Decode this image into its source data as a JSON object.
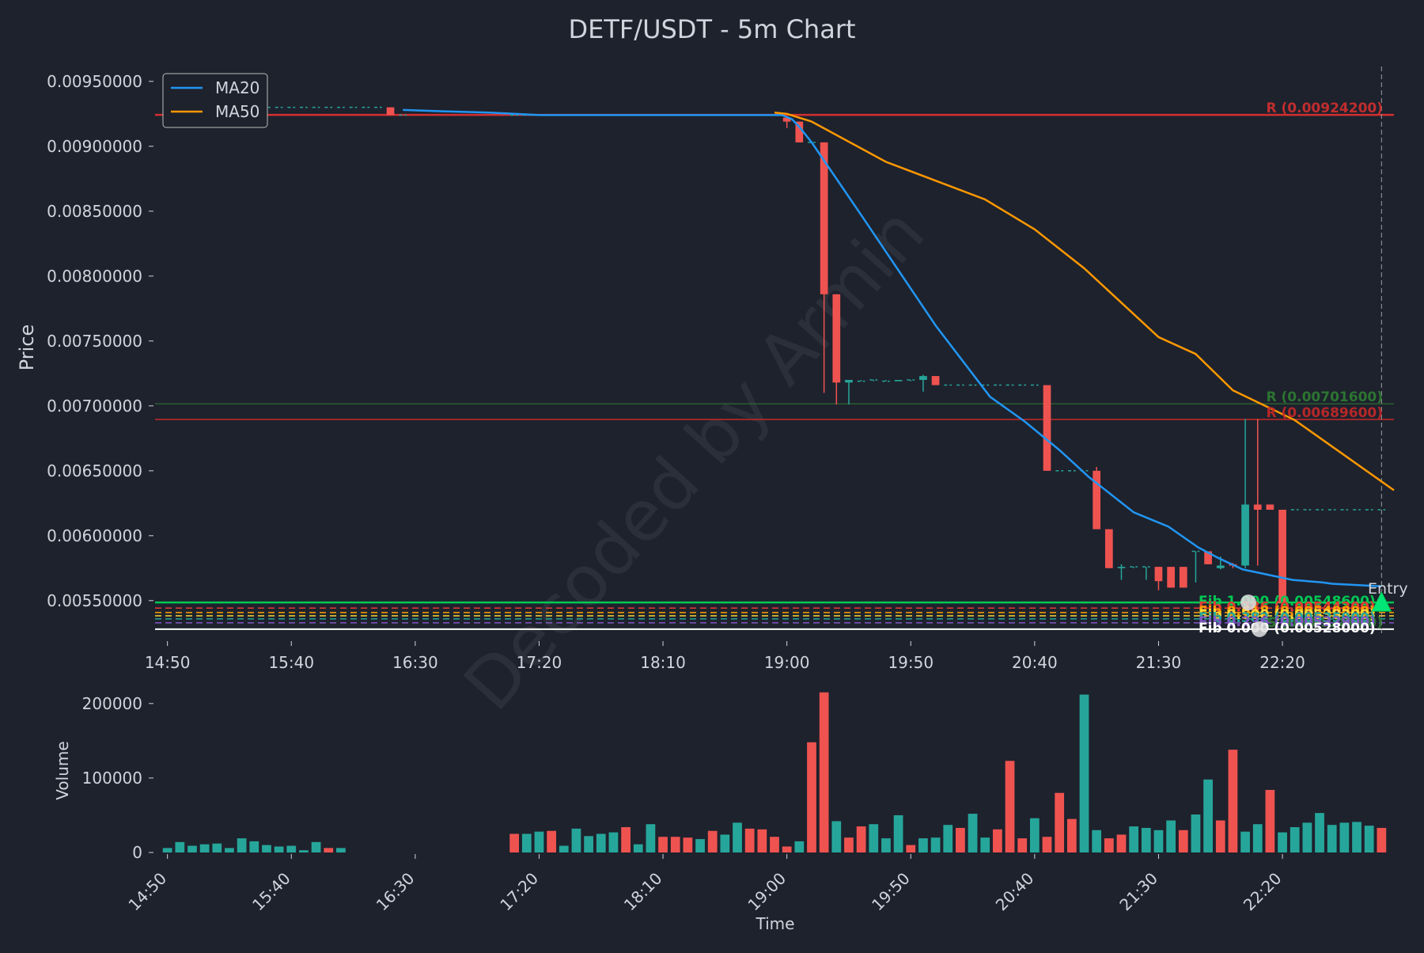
{
  "chart_data": {
    "type": "candlestick",
    "title": "DETF/USDT - 5m Chart",
    "watermark": "Decoded by Armin",
    "price_panel": {
      "ylabel": "Price",
      "ylim": [
        0.0052,
        0.0097
      ],
      "yticks": [
        "0.00550000",
        "0.00600000",
        "0.00650000",
        "0.00700000",
        "0.00750000",
        "0.00800000",
        "0.00850000",
        "0.00900000",
        "0.00950000"
      ],
      "ytick_values": [
        0.0055,
        0.006,
        0.0065,
        0.007,
        0.0075,
        0.008,
        0.0085,
        0.009,
        0.0095
      ],
      "xticks": [
        "14:50",
        "15:40",
        "16:30",
        "17:20",
        "18:10",
        "19:00",
        "19:50",
        "20:40",
        "21:30",
        "22:20"
      ],
      "xtick_minutes": [
        890,
        940,
        990,
        1040,
        1090,
        1140,
        1190,
        1240,
        1290,
        1340
      ],
      "xlim_minutes": [
        885,
        1385
      ],
      "candle_minutes": [
        890,
        895,
        900,
        905,
        910,
        915,
        920,
        925,
        930,
        935,
        940,
        945,
        950,
        955,
        960,
        965,
        970,
        975,
        980,
        985,
        1030,
        1035,
        1040,
        1045,
        1050,
        1055,
        1060,
        1065,
        1070,
        1075,
        1080,
        1085,
        1090,
        1095,
        1100,
        1105,
        1110,
        1115,
        1120,
        1125,
        1130,
        1135,
        1140,
        1145,
        1150,
        1155,
        1160,
        1165,
        1170,
        1175,
        1180,
        1185,
        1190,
        1195,
        1200,
        1205,
        1210,
        1215,
        1220,
        1225,
        1230,
        1235,
        1240,
        1245,
        1250,
        1255,
        1260,
        1265,
        1270,
        1275,
        1280,
        1285,
        1290,
        1295,
        1300,
        1305,
        1310,
        1315,
        1320,
        1325,
        1330,
        1335,
        1340,
        1345,
        1350,
        1355,
        1360,
        1365,
        1370,
        1375,
        1380
      ],
      "open": [
        0.0093,
        0.0093,
        0.0093,
        0.0093,
        0.0093,
        0.0093,
        0.0093,
        0.0093,
        0.0093,
        0.0093,
        0.0093,
        0.0093,
        0.0093,
        0.0093,
        0.0093,
        0.0093,
        0.0093,
        0.0093,
        0.0093,
        0.00924,
        0.00924,
        0.00924,
        0.00924,
        0.00924,
        0.00924,
        0.00924,
        0.00924,
        0.00924,
        0.00924,
        0.00924,
        0.00924,
        0.00924,
        0.00924,
        0.00924,
        0.00924,
        0.00924,
        0.00924,
        0.00924,
        0.00924,
        0.00924,
        0.00924,
        0.00924,
        0.00922,
        0.00919,
        0.00903,
        0.00903,
        0.00786,
        0.00718,
        0.00719,
        0.0072,
        0.00719,
        0.00719,
        0.0072,
        0.0072,
        0.00723,
        0.00716,
        0.00716,
        0.00716,
        0.00716,
        0.00716,
        0.00716,
        0.00716,
        0.00716,
        0.00716,
        0.0065,
        0.0065,
        0.0065,
        0.0065,
        0.00605,
        0.00575,
        0.00576,
        0.00576,
        0.00576,
        0.00576,
        0.00576,
        0.00588,
        0.00588,
        0.00575,
        0.00578,
        0.00577,
        0.00624,
        0.00624,
        0.0062,
        0.0062,
        0.0062,
        0.0062,
        0.0062,
        0.0062,
        0.0062,
        0.0062,
        0.0062,
        0.0062,
        0.0062
      ],
      "high": [
        0.0093,
        0.0093,
        0.0093,
        0.0093,
        0.0093,
        0.0093,
        0.0093,
        0.0093,
        0.0093,
        0.0093,
        0.0093,
        0.0093,
        0.0093,
        0.0093,
        0.0093,
        0.0093,
        0.0093,
        0.0093,
        0.0093,
        0.00924,
        0.00924,
        0.00924,
        0.00924,
        0.00924,
        0.00924,
        0.00924,
        0.00924,
        0.00924,
        0.00924,
        0.00924,
        0.00924,
        0.00924,
        0.00924,
        0.00924,
        0.00924,
        0.00924,
        0.00924,
        0.00924,
        0.00924,
        0.00924,
        0.00924,
        0.00924,
        0.00922,
        0.00919,
        0.00903,
        0.00903,
        0.00786,
        0.0072,
        0.0072,
        0.0072,
        0.0072,
        0.0072,
        0.0072,
        0.00724,
        0.00723,
        0.00716,
        0.00716,
        0.00716,
        0.00716,
        0.00716,
        0.00716,
        0.00716,
        0.00716,
        0.00716,
        0.0065,
        0.0065,
        0.0065,
        0.00653,
        0.00605,
        0.00578,
        0.00576,
        0.00576,
        0.00576,
        0.00576,
        0.00576,
        0.00588,
        0.00588,
        0.00584,
        0.00579,
        0.0069,
        0.0069,
        0.00624,
        0.0062,
        0.0062,
        0.0062,
        0.0062,
        0.0062,
        0.0062,
        0.0062,
        0.0062,
        0.0062,
        0.0062,
        0.0062
      ],
      "low": [
        0.0093,
        0.0093,
        0.0093,
        0.0093,
        0.0093,
        0.0093,
        0.0093,
        0.0093,
        0.0093,
        0.0093,
        0.0093,
        0.0093,
        0.0093,
        0.0093,
        0.0093,
        0.0093,
        0.0093,
        0.0093,
        0.00924,
        0.00924,
        0.00924,
        0.00924,
        0.00924,
        0.00924,
        0.00924,
        0.00924,
        0.00924,
        0.00924,
        0.00924,
        0.00924,
        0.00924,
        0.00924,
        0.00924,
        0.00924,
        0.00924,
        0.00924,
        0.00924,
        0.00924,
        0.00924,
        0.00924,
        0.00924,
        0.00924,
        0.00914,
        0.00903,
        0.00903,
        0.0071,
        0.00701,
        0.00701,
        0.00719,
        0.00719,
        0.00719,
        0.00719,
        0.00719,
        0.00711,
        0.00716,
        0.00716,
        0.00716,
        0.00716,
        0.00716,
        0.00716,
        0.00716,
        0.00716,
        0.00716,
        0.0065,
        0.0065,
        0.0065,
        0.0065,
        0.00605,
        0.00575,
        0.00566,
        0.00575,
        0.00566,
        0.00558,
        0.0056,
        0.0056,
        0.00564,
        0.00578,
        0.00574,
        0.00575,
        0.00575,
        0.00577,
        0.0062,
        0.00548,
        0.0062,
        0.0062,
        0.0062,
        0.0062,
        0.0062,
        0.0062,
        0.0062,
        0.0062,
        0.0062,
        0.0062
      ],
      "close": [
        0.0093,
        0.0093,
        0.0093,
        0.0093,
        0.0093,
        0.0093,
        0.0093,
        0.0093,
        0.0093,
        0.0093,
        0.0093,
        0.0093,
        0.0093,
        0.0093,
        0.0093,
        0.0093,
        0.0093,
        0.0093,
        0.00924,
        0.00924,
        0.00924,
        0.00924,
        0.00924,
        0.00924,
        0.00924,
        0.00924,
        0.00924,
        0.00924,
        0.00924,
        0.00924,
        0.00924,
        0.00924,
        0.00924,
        0.00924,
        0.00924,
        0.00924,
        0.00924,
        0.00924,
        0.00924,
        0.00924,
        0.00924,
        0.00924,
        0.00919,
        0.00903,
        0.00903,
        0.00786,
        0.00718,
        0.0072,
        0.00719,
        0.0072,
        0.00719,
        0.0072,
        0.0072,
        0.00723,
        0.00716,
        0.00716,
        0.00716,
        0.00716,
        0.00716,
        0.00716,
        0.00716,
        0.00716,
        0.00716,
        0.0065,
        0.0065,
        0.0065,
        0.0065,
        0.00605,
        0.00575,
        0.00576,
        0.00576,
        0.00576,
        0.00565,
        0.0056,
        0.0056,
        0.00588,
        0.00578,
        0.00577,
        0.00577,
        0.00624,
        0.0062,
        0.0062,
        0.00548,
        0.0062,
        0.0062,
        0.0062,
        0.0062,
        0.0062,
        0.0062,
        0.0062,
        0.0062,
        0.0062,
        0.0062
      ],
      "ma20": {
        "name": "MA20",
        "color": "#2196f3",
        "minutes": [
          985,
          1000,
          1020,
          1040,
          1060,
          1080,
          1100,
          1120,
          1130,
          1138,
          1142,
          1145,
          1150,
          1170,
          1200,
          1222,
          1236,
          1250,
          1262,
          1280,
          1294,
          1306,
          1314,
          1324,
          1344,
          1356,
          1360,
          1380
        ],
        "values": [
          0.00928,
          0.00927,
          0.00926,
          0.00924,
          0.00924,
          0.00924,
          0.00924,
          0.00924,
          0.00924,
          0.00924,
          0.00921,
          0.00915,
          0.00903,
          0.00847,
          0.00762,
          0.00707,
          0.00688,
          0.00666,
          0.00645,
          0.00618,
          0.00607,
          0.00591,
          0.00583,
          0.00574,
          0.00566,
          0.00564,
          0.00563,
          0.00561
        ]
      },
      "ma50": {
        "name": "MA50",
        "color": "#ff9800",
        "minutes": [
          1135,
          1140,
          1150,
          1180,
          1220,
          1240,
          1260,
          1290,
          1305,
          1320,
          1345,
          1385
        ],
        "values": [
          0.00926,
          0.00925,
          0.00919,
          0.00888,
          0.00859,
          0.00836,
          0.00806,
          0.00753,
          0.0074,
          0.00712,
          0.00689,
          0.00635
        ]
      },
      "levels": [
        {
          "label": "R (0.00924200)",
          "value": 0.009242,
          "color": "#d32f2f",
          "style": "solid",
          "width": 2.5
        },
        {
          "label": "R (0.00701600)",
          "value": 0.007016,
          "color": "#2e7d32",
          "style": "solid",
          "width": 1
        },
        {
          "label": "R (0.00689600)",
          "value": 0.006896,
          "color": "#c62828",
          "style": "solid",
          "width": 1.5
        },
        {
          "label": "S (0.00528000)",
          "value": 0.00528,
          "color": "#2e7d32",
          "style": "solid",
          "width": 1
        },
        {
          "label": "Fib 1.000 (0.00548600)",
          "value": 0.005486,
          "color": "#00c853",
          "style": "solid",
          "width": 2.5
        },
        {
          "label": "Fib 0.786 (0.00544200)",
          "value": 0.005442,
          "color": "#e53935",
          "style": "dashed",
          "width": 1.5
        },
        {
          "label": "Fib 0.618 (0.00540800)",
          "value": 0.005408,
          "color": "#ffa000",
          "style": "dashed",
          "width": 1.5
        },
        {
          "label": "Fib 0.500 (0.00538300)",
          "value": 0.005383,
          "color": "#fdd835",
          "style": "dashed",
          "width": 1.5
        },
        {
          "label": "Fib 0.382 (0.00535900)",
          "value": 0.005359,
          "color": "#26a69a",
          "style": "dashed",
          "width": 1.5
        },
        {
          "label": "Fib 0.236 (0.00532900)",
          "value": 0.005329,
          "color": "#7e57c2",
          "style": "dashed",
          "width": 1.5
        },
        {
          "label": "Fib 0.000 (0.00528000)",
          "value": 0.00528,
          "color": "#ffffff",
          "style": "solid",
          "width": 2
        }
      ],
      "entry": {
        "label": "Entry",
        "minute": 1380,
        "value": 0.00548
      }
    },
    "volume_panel": {
      "ylabel": "Volume",
      "xlabel": "Time",
      "ylim": [
        0,
        220000
      ],
      "yticks": [
        "0",
        "100000",
        "200000"
      ],
      "ytick_values": [
        0,
        100000,
        200000
      ],
      "volumes": [
        6000,
        14000,
        9000,
        11000,
        12000,
        6000,
        19000,
        15000,
        10000,
        8000,
        9000,
        3000,
        14000,
        6000,
        6000,
        0,
        0,
        0,
        0,
        0,
        25000,
        25000,
        28000,
        29000,
        9000,
        32000,
        22000,
        25000,
        27000,
        34000,
        11000,
        38000,
        21000,
        21000,
        20000,
        18000,
        29000,
        24000,
        40000,
        32000,
        31000,
        21000,
        8000,
        15000,
        148000,
        215000,
        42000,
        20000,
        35000,
        38000,
        19000,
        50000,
        10000,
        19000,
        20000,
        37000,
        33000,
        52000,
        20000,
        31000,
        123000,
        19000,
        46000,
        21000,
        80000,
        45000,
        212000,
        30000,
        19000,
        24000,
        35000,
        33000,
        30000,
        43000,
        30000,
        51000,
        98000,
        43000,
        138000,
        28000,
        38000,
        84000,
        27000,
        34000,
        40000,
        53000,
        37000,
        40000,
        41000,
        36000,
        33000,
        2000,
        2000
      ],
      "up": [
        true,
        true,
        true,
        true,
        true,
        true,
        true,
        true,
        true,
        true,
        true,
        true,
        true,
        false,
        true,
        true,
        true,
        true,
        true,
        false,
        false,
        true,
        true,
        false,
        true,
        true,
        true,
        true,
        true,
        false,
        true,
        true,
        false,
        false,
        false,
        true,
        false,
        true,
        true,
        false,
        false,
        false,
        false,
        true,
        false,
        false,
        true,
        false,
        false,
        true,
        true,
        true,
        false,
        true,
        true,
        true,
        false,
        true,
        true,
        false,
        false,
        false,
        true,
        false,
        false,
        false,
        true,
        true,
        false,
        false,
        true,
        true,
        true,
        true,
        false,
        true,
        true,
        false,
        false,
        true,
        true,
        false,
        true,
        true,
        true,
        true,
        true,
        true,
        true,
        true,
        false,
        true,
        true
      ]
    },
    "legend": {
      "position": "upper-left",
      "entries": [
        "MA20",
        "MA50"
      ]
    },
    "colors": {
      "background": "#1e222d",
      "up": "#26a69a",
      "down": "#ef5350",
      "text": "#d1d4dc"
    }
  }
}
